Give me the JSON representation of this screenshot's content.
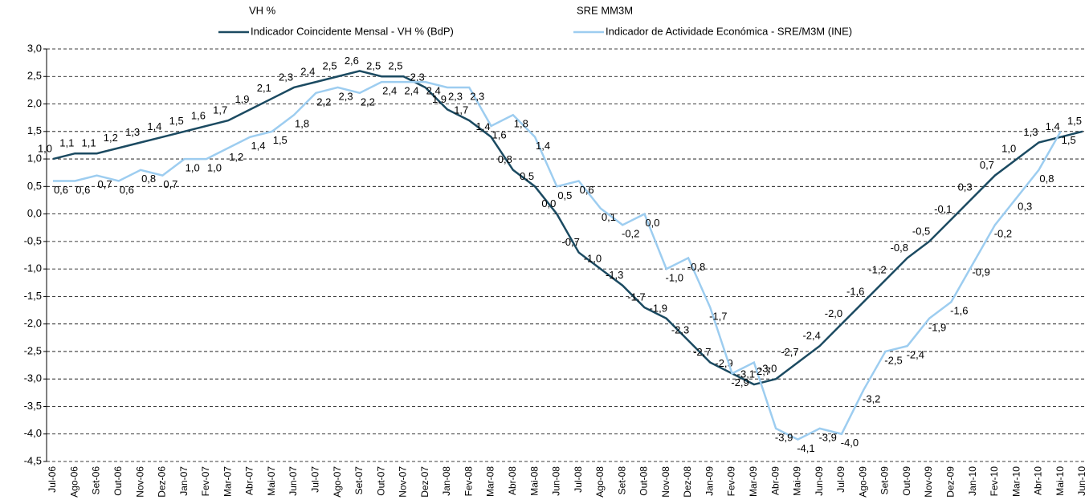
{
  "chart_data": {
    "type": "line",
    "legend_headers": [
      "VH %",
      "SRE MM3M"
    ],
    "categories": [
      "Jul-06",
      "Ago-06",
      "Set-06",
      "Out-06",
      "Nov-06",
      "Dez-06",
      "Jan-07",
      "Fev-07",
      "Mar-07",
      "Abr-07",
      "Mai-07",
      "Jun-07",
      "Jul-07",
      "Ago-07",
      "Set-07",
      "Out-07",
      "Nov-07",
      "Dez-07",
      "Jan-08",
      "Fev-08",
      "Mar-08",
      "Abr-08",
      "Mai-08",
      "Jun-08",
      "Jul-08",
      "Ago-08",
      "Set-08",
      "Out-08",
      "Nov-08",
      "Dez-08",
      "Jan-09",
      "Fev-09",
      "Mar-09",
      "Abr-09",
      "Mai-09",
      "Jun-09",
      "Jul-09",
      "Ago-09",
      "Set-09",
      "Out-09",
      "Nov-09",
      "Dez-09",
      "Jan-10",
      "Fev-10",
      "Mar-10",
      "Abr-10",
      "Mai-10",
      "Jun-10"
    ],
    "series": [
      {
        "name": "Indicador Coincidente Mensal - VH % (BdP)",
        "color": "#1b4a61",
        "values": [
          1.0,
          1.1,
          1.1,
          1.2,
          1.3,
          1.4,
          1.5,
          1.6,
          1.7,
          1.9,
          2.1,
          2.3,
          2.4,
          2.5,
          2.6,
          2.5,
          2.5,
          2.3,
          1.9,
          1.7,
          1.4,
          0.8,
          0.5,
          0.0,
          -0.7,
          -1.0,
          -1.3,
          -1.7,
          -1.9,
          -2.3,
          -2.7,
          -2.9,
          -3.1,
          -3.0,
          -2.7,
          -2.4,
          -2.0,
          -1.6,
          -1.2,
          -0.8,
          -0.5,
          -0.1,
          0.3,
          0.7,
          1.0,
          1.3,
          1.4,
          1.5
        ],
        "value_labels": [
          "1,0",
          "1,1",
          "1,1",
          "1,2",
          "1,3",
          "1,4",
          "1,5",
          "1,6",
          "1,7",
          "1,9",
          "2,1",
          "2,3",
          "2,4",
          "2,5",
          "2,6",
          "2,5",
          "2,5",
          "2,3",
          "1,9",
          "1,7",
          "1,4",
          "0,8",
          "0,5",
          "0,0",
          "-0,7",
          "-1,0",
          "-1,3",
          "-1,7",
          "-1,9",
          "-2,3",
          "-2,7",
          "-2,9",
          "-3,1",
          "-3,0",
          "-2,7",
          "-2,4",
          "-2,0",
          "-1,6",
          "-1,2",
          "-0,8",
          "-0,5",
          "-0,1",
          "0,3",
          "0,7",
          "1,0",
          "1,3",
          "1,4",
          "1,5"
        ]
      },
      {
        "name": "Indicador de Actividade Económica - SRE/M3M (INE)",
        "color": "#9dcdf0",
        "values": [
          0.6,
          0.6,
          0.7,
          0.6,
          0.8,
          0.7,
          1.0,
          1.0,
          1.2,
          1.4,
          1.5,
          1.8,
          2.2,
          2.3,
          2.2,
          2.4,
          2.4,
          2.4,
          2.3,
          2.3,
          1.6,
          1.8,
          1.4,
          0.5,
          0.6,
          0.1,
          -0.2,
          0.0,
          -1.0,
          -0.8,
          -1.7,
          -2.9,
          -2.7,
          -3.9,
          -4.1,
          -3.9,
          -4.0,
          -3.2,
          -2.5,
          -2.4,
          -1.9,
          -1.6,
          -0.9,
          -0.2,
          0.3,
          0.8,
          1.5,
          null
        ],
        "value_labels": [
          "0,6",
          "0,6",
          "0,7",
          "0,6",
          "0,8",
          "0,7",
          "1,0",
          "1,0",
          "1,2",
          "1,4",
          "1,5",
          "1,8",
          "2,2",
          "2,3",
          "2,2",
          "2,4",
          "2,4",
          "2,4",
          "2,3",
          "2,3",
          "1,6",
          "1,8",
          "1,4",
          "0,5",
          "0,6",
          "0,1",
          "-0,2",
          "0,0",
          "-1,0",
          "-0,8",
          "-1,7",
          "-2,9",
          "-2,7",
          "-3,9",
          "-4,1",
          "-3,9",
          "-4,0",
          "-3,2",
          "-2,5",
          "-2,4",
          "-1,9",
          "-1,6",
          "-0,9",
          "-0,2",
          "0,3",
          "0,8",
          "1,5",
          null
        ]
      }
    ],
    "ylim": [
      -4.5,
      3.0
    ],
    "yticks": [
      {
        "value": -4.5,
        "label": "-4,5"
      },
      {
        "value": -4.0,
        "label": "-4,0"
      },
      {
        "value": -3.5,
        "label": "-3,5"
      },
      {
        "value": -3.0,
        "label": "-3,0"
      },
      {
        "value": -2.5,
        "label": "-2,5"
      },
      {
        "value": -2.0,
        "label": "-2,0"
      },
      {
        "value": -1.5,
        "label": "-1,5"
      },
      {
        "value": -1.0,
        "label": "-1,0"
      },
      {
        "value": -0.5,
        "label": "-0,5"
      },
      {
        "value": 0.0,
        "label": "0,0"
      },
      {
        "value": 0.5,
        "label": "0,5"
      },
      {
        "value": 1.0,
        "label": "1,0"
      },
      {
        "value": 1.5,
        "label": "1,5"
      },
      {
        "value": 2.0,
        "label": "2,0"
      },
      {
        "value": 2.5,
        "label": "2,5"
      },
      {
        "value": 3.0,
        "label": "3,0"
      }
    ],
    "grid": true
  }
}
